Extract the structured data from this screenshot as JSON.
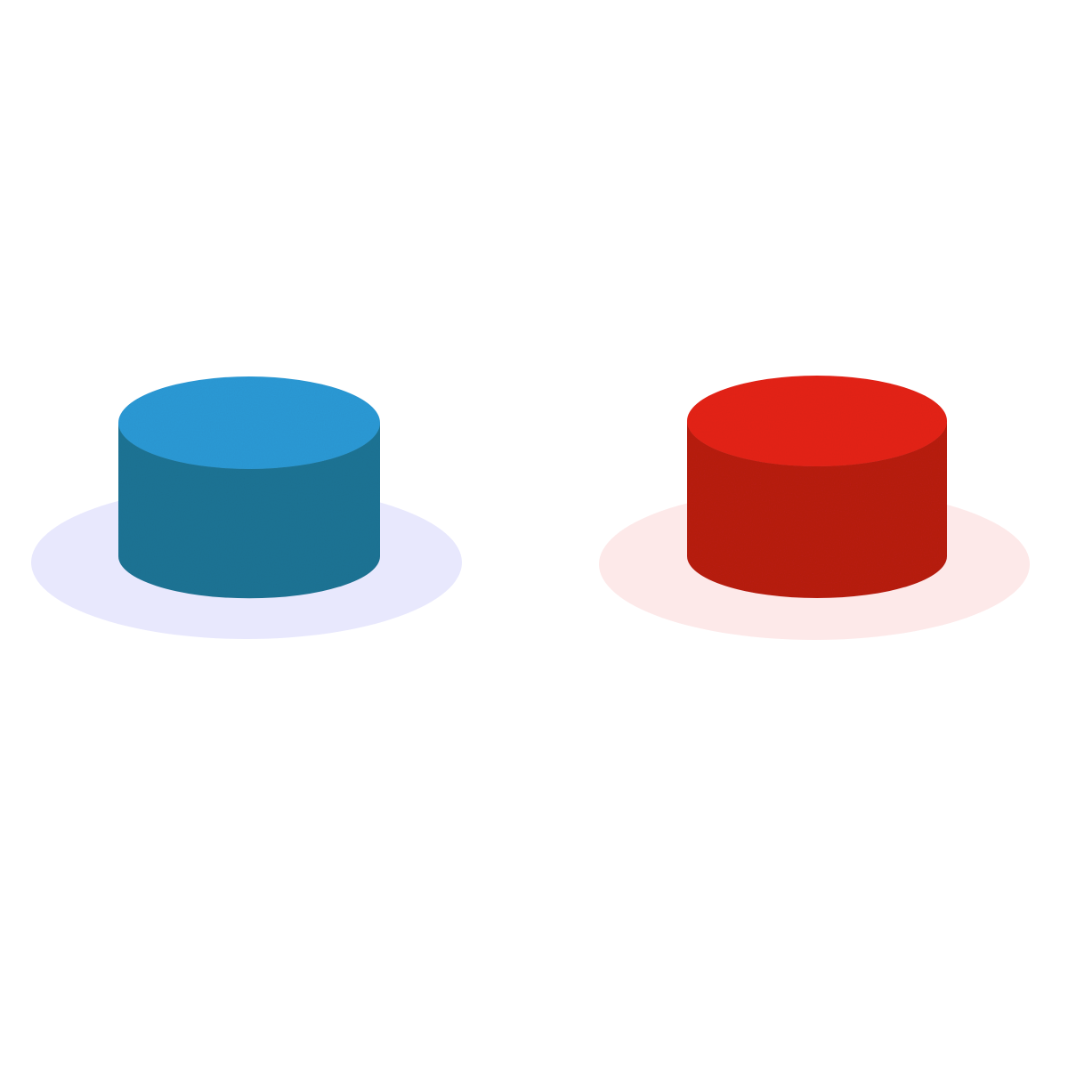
{
  "illustration": {
    "background_color": "#ffffff",
    "cylinders": [
      {
        "color_name": "blue",
        "top_color": "#2c9ad6",
        "side_color": "#1f7495",
        "side_shade_color": "#1a6383",
        "shadow_color": "#e8e8fd"
      },
      {
        "color_name": "red",
        "top_color": "#e52217",
        "side_color": "#b91b12",
        "side_shade_color": "#a7170f",
        "shadow_color": "#fde9e9"
      }
    ]
  }
}
